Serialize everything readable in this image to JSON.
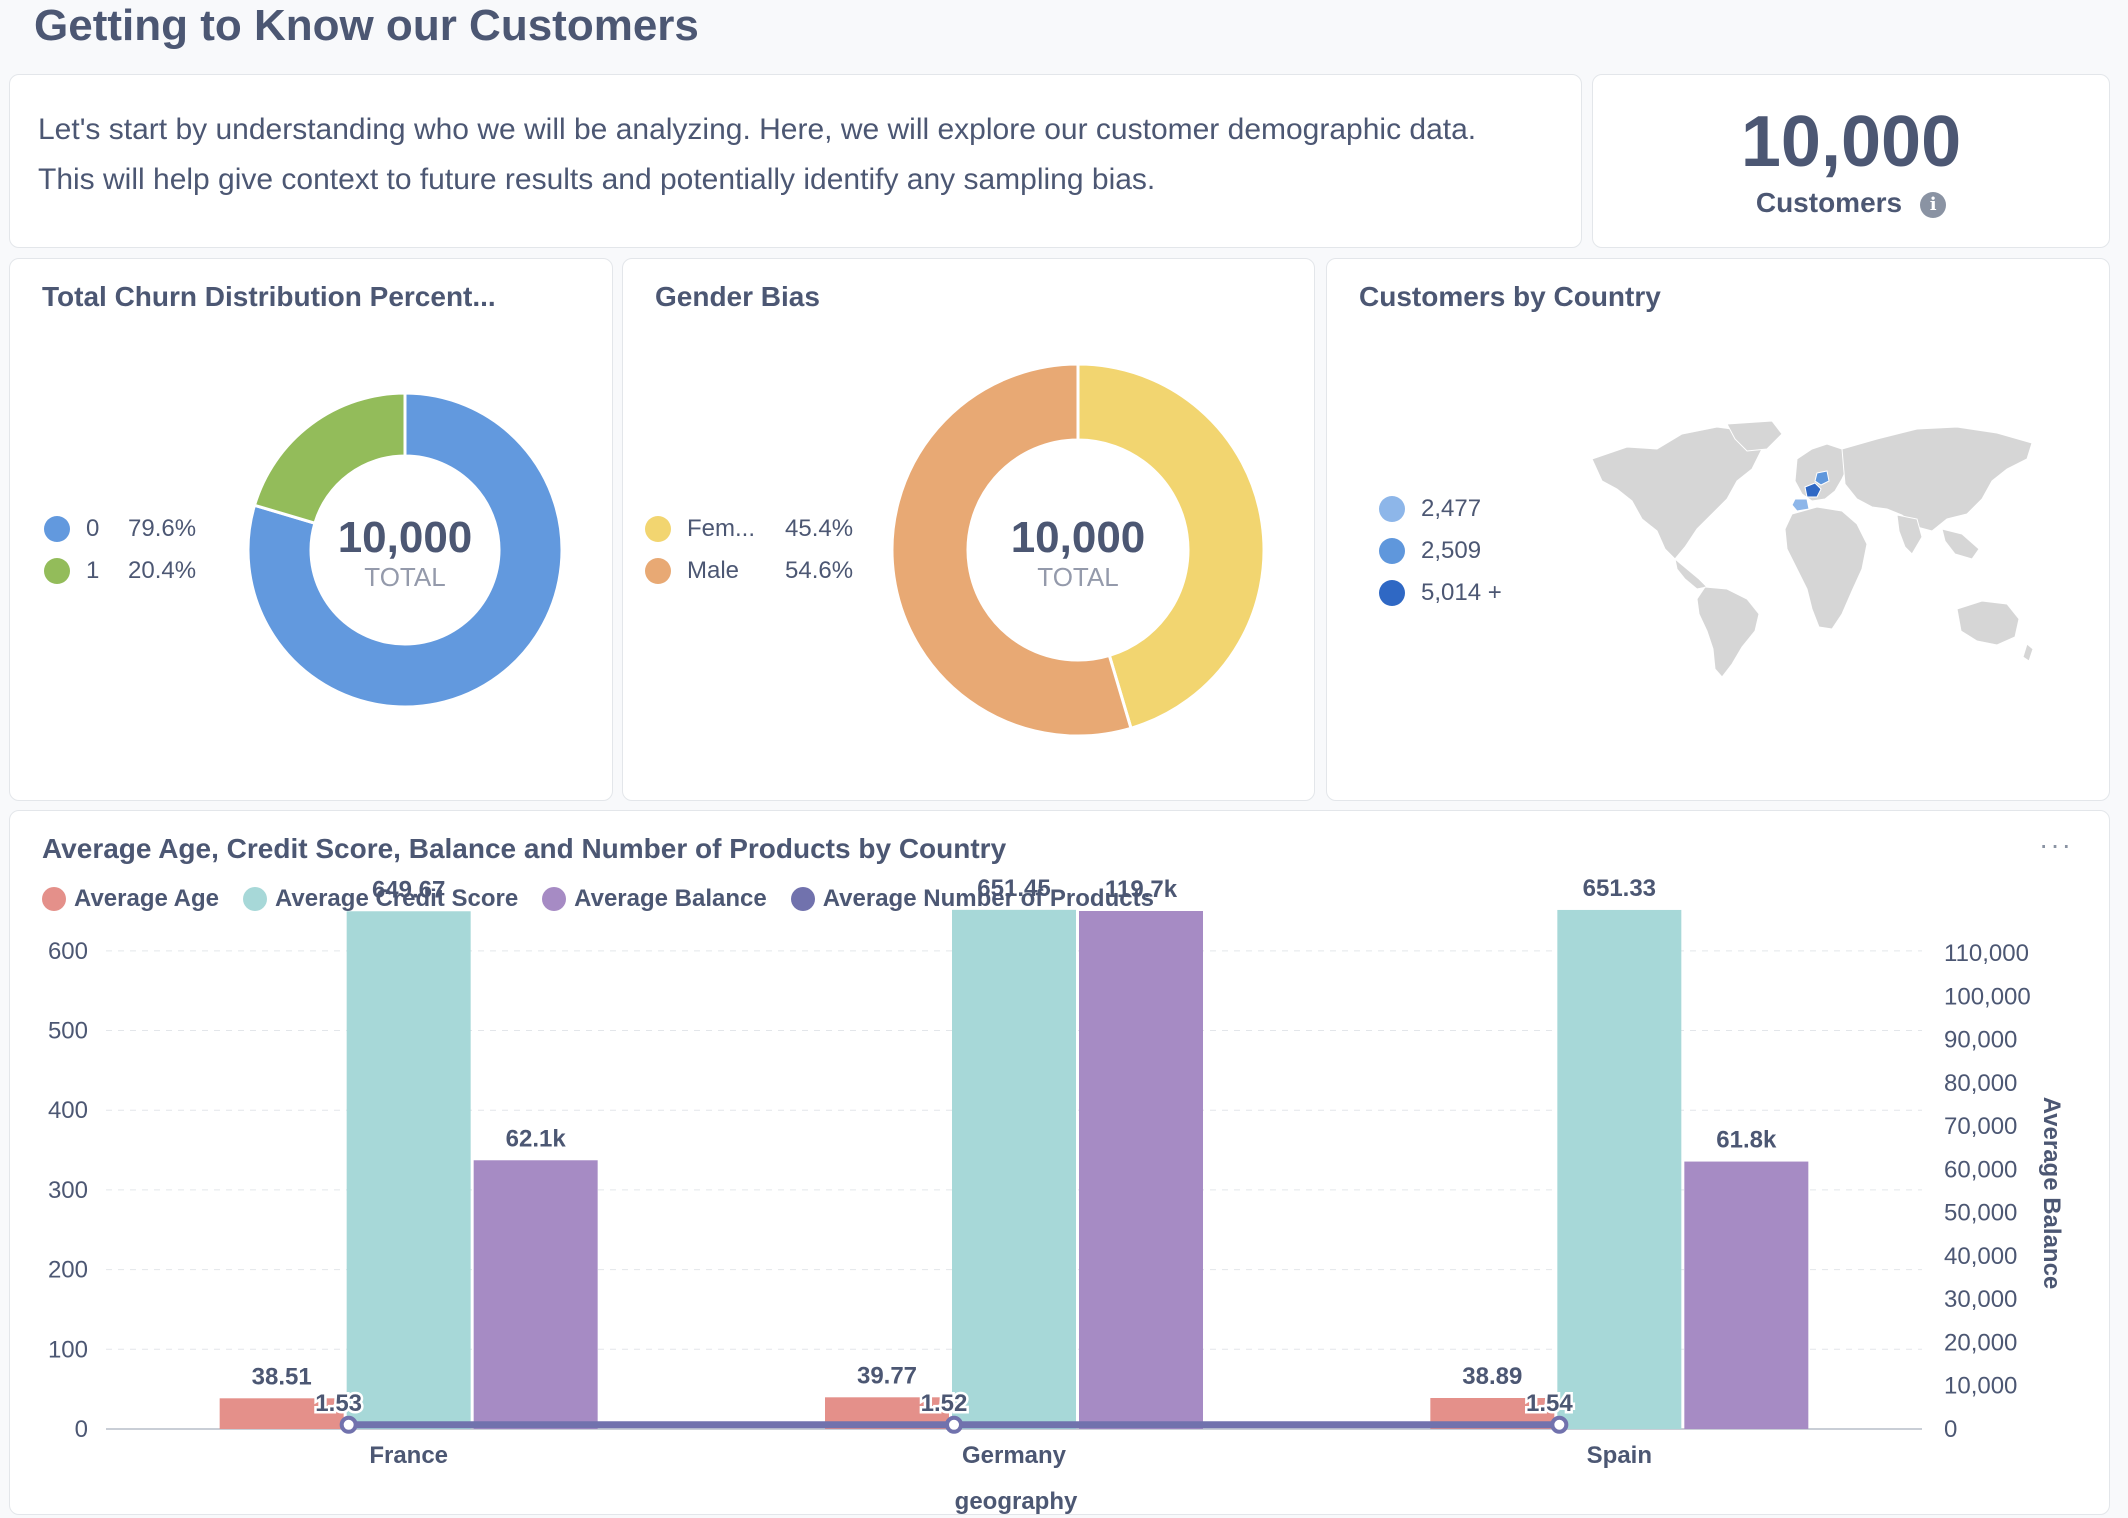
{
  "page": {
    "title": "Getting to Know our Customers"
  },
  "intro": {
    "line1": "Let's start by understanding who we will be analyzing. Here, we will explore our customer demographic data.",
    "line2": "This will help give context to future results and potentially identify any sampling bias."
  },
  "kpi": {
    "value": "10,000",
    "label": "Customers",
    "info_icon": "info-icon"
  },
  "churn": {
    "title": "Total Churn Distribution Percent...",
    "total": "10,000",
    "total_label": "TOTAL",
    "items": [
      {
        "label": "0",
        "pct": "79.6%",
        "value": 79.6,
        "color": "#6299de"
      },
      {
        "label": "1",
        "pct": "20.4%",
        "value": 20.4,
        "color": "#93bc5a"
      }
    ]
  },
  "gender": {
    "title": "Gender Bias",
    "total": "10,000",
    "total_label": "TOTAL",
    "items": [
      {
        "label": "Fem...",
        "pct": "45.4%",
        "value": 45.4,
        "color": "#f2d570"
      },
      {
        "label": "Male",
        "pct": "54.6%",
        "value": 54.6,
        "color": "#e8a974"
      }
    ]
  },
  "countries": {
    "title": "Customers by Country",
    "legend": [
      {
        "label": "2,477",
        "color": "#8db6e9"
      },
      {
        "label": "2,509",
        "color": "#5f97dc"
      },
      {
        "label": "5,014 +",
        "color": "#2f68c4"
      }
    ],
    "map_fill": "#d6d6d6"
  },
  "chart_data": {
    "type": "bar",
    "title": "Average Age, Credit Score, Balance and Number of Products by Country",
    "categories": [
      "France",
      "Germany",
      "Spain"
    ],
    "xlabel": "geography",
    "ylabel": "",
    "y2label": "Average Balance",
    "ylim": [
      0,
      650
    ],
    "y2lim": [
      0,
      119700
    ],
    "yticks": [
      "0",
      "100",
      "200",
      "300",
      "400",
      "500",
      "600"
    ],
    "y2ticks": [
      "0",
      "10,000",
      "20,000",
      "30,000",
      "40,000",
      "50,000",
      "60,000",
      "70,000",
      "80,000",
      "90,000",
      "100,000",
      "110,000"
    ],
    "series": [
      {
        "name": "Average Age",
        "color": "#e4908a",
        "axis": "left",
        "kind": "bar",
        "values": [
          38.51,
          39.77,
          38.89
        ],
        "labels": [
          "38.51",
          "39.77",
          "38.89"
        ]
      },
      {
        "name": "Average Credit Score",
        "color": "#a7d8d8",
        "axis": "left",
        "kind": "bar",
        "values": [
          649.67,
          651.45,
          651.33
        ],
        "labels": [
          "649.67",
          "651.45",
          "651.33"
        ]
      },
      {
        "name": "Average Balance",
        "color": "#a68bc4",
        "axis": "right",
        "kind": "bar",
        "values": [
          62100,
          119700,
          61800
        ],
        "labels": [
          "62.1k",
          "119.7k",
          "61.8k"
        ]
      },
      {
        "name": "Average Number of Products",
        "color": "#7172ad",
        "axis": "left",
        "kind": "line",
        "values": [
          1.53,
          1.52,
          1.54
        ],
        "labels": [
          "1.53",
          "1.52",
          "1.54"
        ]
      }
    ]
  }
}
